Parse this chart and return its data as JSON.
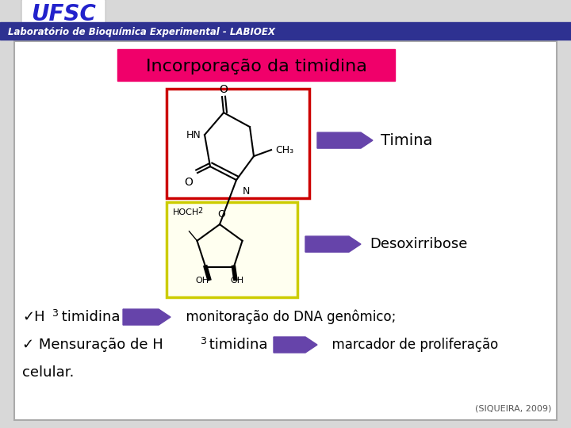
{
  "slide_bg": "#d8d8d8",
  "header_bar_color": "#2e3191",
  "header_text": "Laboratório de Bioquímica Experimental - LABIOEX",
  "ufsc_text": "UFSC",
  "ufsc_color": "#2222cc",
  "title_bg": "#f0006a",
  "title_text": "Incorporação da timidina",
  "title_text_color": "#000000",
  "arrow_color": "#6644aa",
  "timina_label": "Timina",
  "desoxirribose_label": "Desoxirribose",
  "red_box_color": "#cc0000",
  "yellow_box_color": "#cccc00",
  "citation": "(SIQUEIRA, 2009)",
  "content_box_bg": "#ffffff",
  "content_box_border": "#aaaaaa"
}
